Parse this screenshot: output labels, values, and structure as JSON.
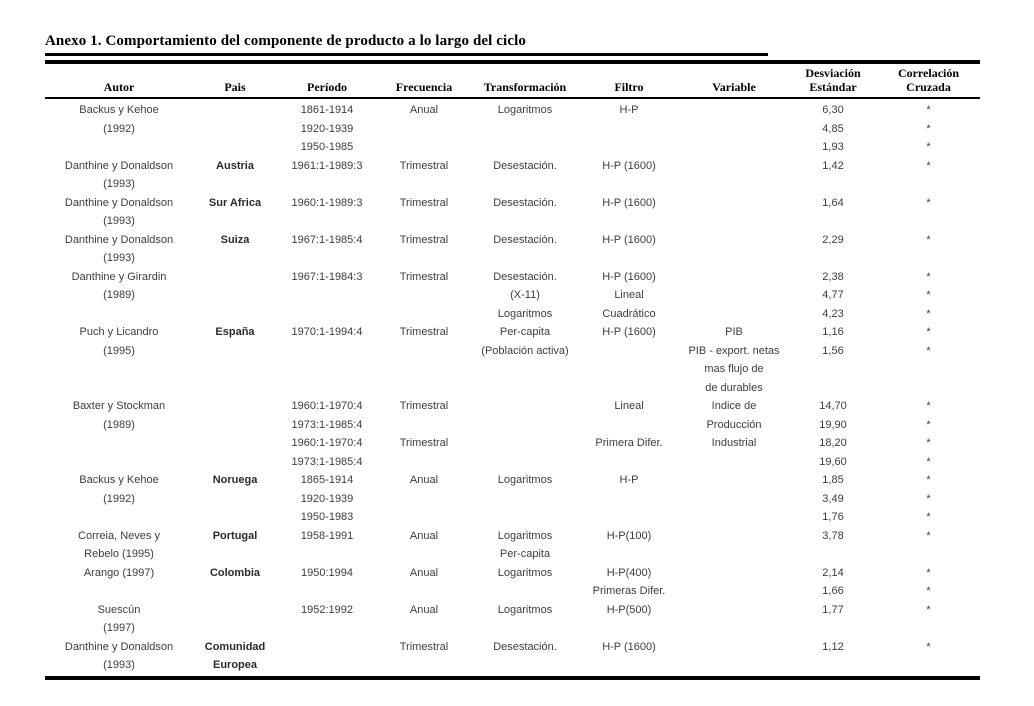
{
  "page": {
    "title": "Anexo 1. Comportamiento del componente de producto a lo largo del ciclo"
  },
  "colors": {
    "ink": "#000000",
    "body_text": "#3d3d3d",
    "background": "#ffffff"
  },
  "table": {
    "header": {
      "columns": [
        {
          "key": "autor",
          "line1": "",
          "line2": "Autor"
        },
        {
          "key": "pais",
          "line1": "",
          "line2": "Pais"
        },
        {
          "key": "periodo",
          "line1": "",
          "line2": "Período"
        },
        {
          "key": "frecuencia",
          "line1": "",
          "line2": "Frecuencia"
        },
        {
          "key": "transformacion",
          "line1": "",
          "line2": "Transformación"
        },
        {
          "key": "filtro",
          "line1": "",
          "line2": "Filtro"
        },
        {
          "key": "variable",
          "line1": "",
          "line2": "Variable"
        },
        {
          "key": "desviacion-estandar",
          "line1": "Desviación",
          "line2": "Estándar"
        },
        {
          "key": "correlacion-cruzada",
          "line1": "Correlación",
          "line2": "Cruzada"
        }
      ]
    },
    "rows": [
      [
        "Backus y Kehoe",
        "",
        "1861-1914",
        "Anual",
        "Logaritmos",
        "H-P",
        "",
        "6,30",
        "*"
      ],
      [
        "(1992)",
        "",
        "1920-1939",
        "",
        "",
        "",
        "",
        "4,85",
        "*"
      ],
      [
        "",
        "",
        "1950-1985",
        "",
        "",
        "",
        "",
        "1,93",
        "*"
      ],
      [
        "Danthine y Donaldson",
        "Austria",
        "1961:1-1989:3",
        "Trimestral",
        "Desestación.",
        "H-P (1600)",
        "",
        "1,42",
        "*"
      ],
      [
        "(1993)",
        "",
        "",
        "",
        "",
        "",
        "",
        "",
        ""
      ],
      [
        "Danthine y Donaldson",
        "Sur Africa",
        "1960:1-1989:3",
        "Trimestral",
        "Desestación.",
        "H-P (1600)",
        "",
        "1,64",
        "*"
      ],
      [
        "(1993)",
        "",
        "",
        "",
        "",
        "",
        "",
        "",
        ""
      ],
      [
        "Danthine y Donaldson",
        "Suiza",
        "1967:1-1985:4",
        "Trimestral",
        "Desestación.",
        "H-P (1600)",
        "",
        "2,29",
        "*"
      ],
      [
        "(1993)",
        "",
        "",
        "",
        "",
        "",
        "",
        "",
        ""
      ],
      [
        "Danthine y Girardin",
        "",
        "1967:1-1984:3",
        "Trimestral",
        "Desestación.",
        "H-P (1600)",
        "",
        "2,38",
        "*"
      ],
      [
        "(1989)",
        "",
        "",
        "",
        "(X-11)",
        "Lineal",
        "",
        "4,77",
        "*"
      ],
      [
        "",
        "",
        "",
        "",
        "Logaritmos",
        "Cuadrático",
        "",
        "4,23",
        "*"
      ],
      [
        "Puch y Licandro",
        "España",
        "1970:1-1994:4",
        "Trimestral",
        "Per-capita",
        "H-P (1600)",
        "PIB",
        "1,16",
        "*"
      ],
      [
        "(1995)",
        "",
        "",
        "",
        "(Población activa)",
        "",
        "PIB - export. netas",
        "1,56",
        "*"
      ],
      [
        "",
        "",
        "",
        "",
        "",
        "",
        "mas flujo de",
        "",
        ""
      ],
      [
        "",
        "",
        "",
        "",
        "",
        "",
        "de durables",
        "",
        ""
      ],
      [
        "Baxter y Stockman",
        "",
        "1960:1-1970:4",
        "Trimestral",
        "",
        "Lineal",
        "Indice de",
        "14,70",
        "*"
      ],
      [
        "(1989)",
        "",
        "1973:1-1985:4",
        "",
        "",
        "",
        "Producción",
        "19,90",
        "*"
      ],
      [
        "",
        "",
        "1960:1-1970:4",
        "Trimestral",
        "",
        "Primera Difer.",
        "Industrial",
        "18,20",
        "*"
      ],
      [
        "",
        "",
        "1973:1-1985:4",
        "",
        "",
        "",
        "",
        "19,60",
        "*"
      ],
      [
        "Backus y Kehoe",
        "Noruega",
        "1865-1914",
        "Anual",
        "Logaritmos",
        "H-P",
        "",
        "1,85",
        "*"
      ],
      [
        "(1992)",
        "",
        "1920-1939",
        "",
        "",
        "",
        "",
        "3,49",
        "*"
      ],
      [
        "",
        "",
        "1950-1983",
        "",
        "",
        "",
        "",
        "1,76",
        "*"
      ],
      [
        "Correia, Neves y",
        "Portugal",
        "1958-1991",
        "Anual",
        "Logaritmos",
        "H-P(100)",
        "",
        "3,78",
        "*"
      ],
      [
        "Rebelo (1995)",
        "",
        "",
        "",
        "Per-capita",
        "",
        "",
        "",
        ""
      ],
      [
        "Arango (1997)",
        "Colombia",
        "1950:1994",
        "Anual",
        "Logaritmos",
        "H-P(400)",
        "",
        "2,14",
        "*"
      ],
      [
        "",
        "",
        "",
        "",
        "",
        "Primeras Difer.",
        "",
        "1,66",
        "*"
      ],
      [
        "Suescún",
        "",
        "1952:1992",
        "Anual",
        "Logaritmos",
        "H-P(500)",
        "",
        "1,77",
        "*"
      ],
      [
        "(1997)",
        "",
        "",
        "",
        "",
        "",
        "",
        "",
        ""
      ],
      [
        "Danthine y Donaldson",
        "Comunidad",
        "",
        "Trimestral",
        "Desestación.",
        "H-P (1600)",
        "",
        "1,12",
        "*"
      ],
      [
        "(1993)",
        "Europea",
        "",
        "",
        "",
        "",
        "",
        "",
        ""
      ]
    ]
  }
}
